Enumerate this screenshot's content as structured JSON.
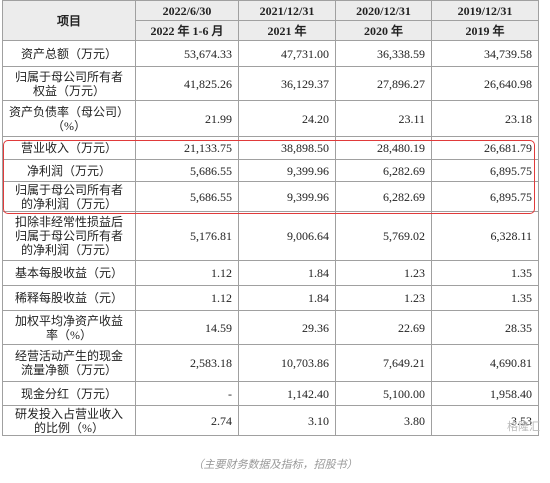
{
  "header": {
    "item": "项目",
    "columns": [
      {
        "date": "2022/6/30",
        "period": "2022 年 1-6 月"
      },
      {
        "date": "2021/12/31",
        "period": "2021 年"
      },
      {
        "date": "2020/12/31",
        "period": "2020 年"
      },
      {
        "date": "2019/12/31",
        "period": "2019 年"
      }
    ]
  },
  "table": {
    "rows": [
      {
        "label": [
          "资产总额（万元）"
        ],
        "values": [
          "53,674.33",
          "47,731.00",
          "36,338.59",
          "34,739.58"
        ]
      },
      {
        "label": [
          "归属于母公司所有者",
          "权益（万元）"
        ],
        "values": [
          "41,825.26",
          "36,129.37",
          "27,896.27",
          "26,640.98"
        ]
      },
      {
        "label": [
          "资产负债率（母公司）",
          "（%）"
        ],
        "values": [
          "21.99",
          "24.20",
          "23.11",
          "23.18"
        ]
      },
      {
        "label": [
          "营业收入（万元）"
        ],
        "values": [
          "21,133.75",
          "38,898.50",
          "28,480.19",
          "26,681.79"
        ]
      },
      {
        "label": [
          "净利润（万元）"
        ],
        "values": [
          "5,686.55",
          "9,399.96",
          "6,282.69",
          "6,895.75"
        ]
      },
      {
        "label": [
          "归属于母公司所有者",
          "的净利润（万元）"
        ],
        "values": [
          "5,686.55",
          "9,399.96",
          "6,282.69",
          "6,895.75"
        ]
      },
      {
        "label": [
          "扣除非经常性损益后",
          "归属于母公司所有者",
          "的净利润（万元）"
        ],
        "values": [
          "5,176.81",
          "9,006.64",
          "5,769.02",
          "6,328.11"
        ]
      },
      {
        "label": [
          "基本每股收益（元）"
        ],
        "values": [
          "1.12",
          "1.84",
          "1.23",
          "1.35"
        ]
      },
      {
        "label": [
          "稀释每股收益（元）"
        ],
        "values": [
          "1.12",
          "1.84",
          "1.23",
          "1.35"
        ]
      },
      {
        "label": [
          "加权平均净资产收益",
          "率（%）"
        ],
        "values": [
          "14.59",
          "29.36",
          "22.69",
          "28.35"
        ]
      },
      {
        "label": [
          "经营活动产生的现金",
          "流量净额（万元）"
        ],
        "values": [
          "2,583.18",
          "10,703.86",
          "7,649.21",
          "4,690.81"
        ]
      },
      {
        "label": [
          "现金分红（万元）"
        ],
        "values": [
          "-",
          "1,142.40",
          "5,100.00",
          "1,958.40"
        ]
      },
      {
        "label": [
          "研发投入占营业收入",
          "的比例（%）"
        ],
        "values": [
          "2.74",
          "3.10",
          "3.80",
          "3.53"
        ]
      }
    ]
  },
  "watermark": "格隆汇",
  "caption": "（主要财务数据及指标，招股书）"
}
